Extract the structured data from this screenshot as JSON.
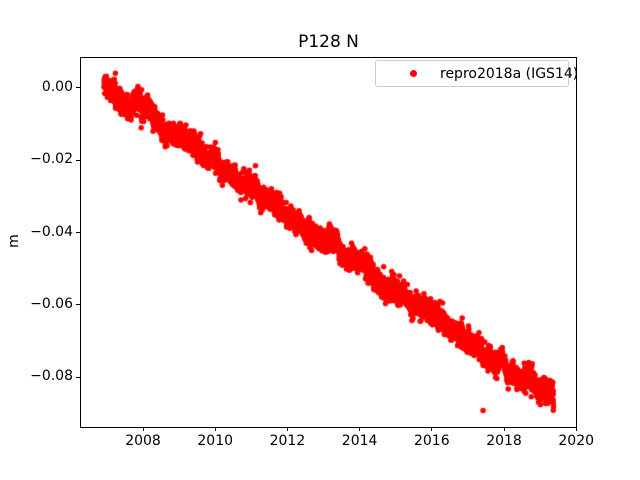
{
  "title": "P128 N",
  "ylabel": "m",
  "legend": {
    "label": "repro2018a (IGS14)",
    "marker_color": "#ff0000"
  },
  "axes": {
    "xlim": [
      2006.254,
      2019.994
    ],
    "ylim": [
      -0.09385,
      0.0084
    ],
    "xticks": [
      2008,
      2010,
      2012,
      2014,
      2016,
      2018,
      2020
    ],
    "xtick_labels": [
      "2008",
      "2010",
      "2012",
      "2014",
      "2016",
      "2018",
      "2020"
    ],
    "yticks": [
      0,
      -0.02,
      -0.04,
      -0.06,
      -0.08
    ],
    "ytick_labels": [
      "0.00",
      "−0.02",
      "−0.04",
      "−0.06",
      "−0.08"
    ],
    "spine_color": "#000000",
    "grid": false
  },
  "chart_data": {
    "type": "scatter",
    "title": "P128 N",
    "xlabel": "",
    "ylabel": "m",
    "legend_position": "upper right",
    "series": [
      {
        "name": "repro2018a (IGS14)",
        "color": "#ff0000",
        "marker": "point",
        "marker_diameter_px": 5.5,
        "n_points": 4550,
        "x_start": 2006.92,
        "x_end": 2019.37,
        "trend": {
          "value_at_start": 0.0005,
          "slope_per_year": -0.00695
        },
        "trend_points": [
          [
            2007,
            0.0
          ],
          [
            2009,
            -0.014
          ],
          [
            2011,
            -0.028
          ],
          [
            2013,
            -0.042
          ],
          [
            2015,
            -0.056
          ],
          [
            2017,
            -0.07
          ],
          [
            2019,
            -0.084
          ]
        ],
        "noise_std": 0.0014,
        "walk_std": 0.00025,
        "walk_ar": 0.97,
        "seasonal_amplitude": 0.0008,
        "outlier_prob": 0.01,
        "outlier_std": 0.0025,
        "outliers": [
          [
            2017.42,
            -0.0891
          ]
        ]
      }
    ]
  }
}
